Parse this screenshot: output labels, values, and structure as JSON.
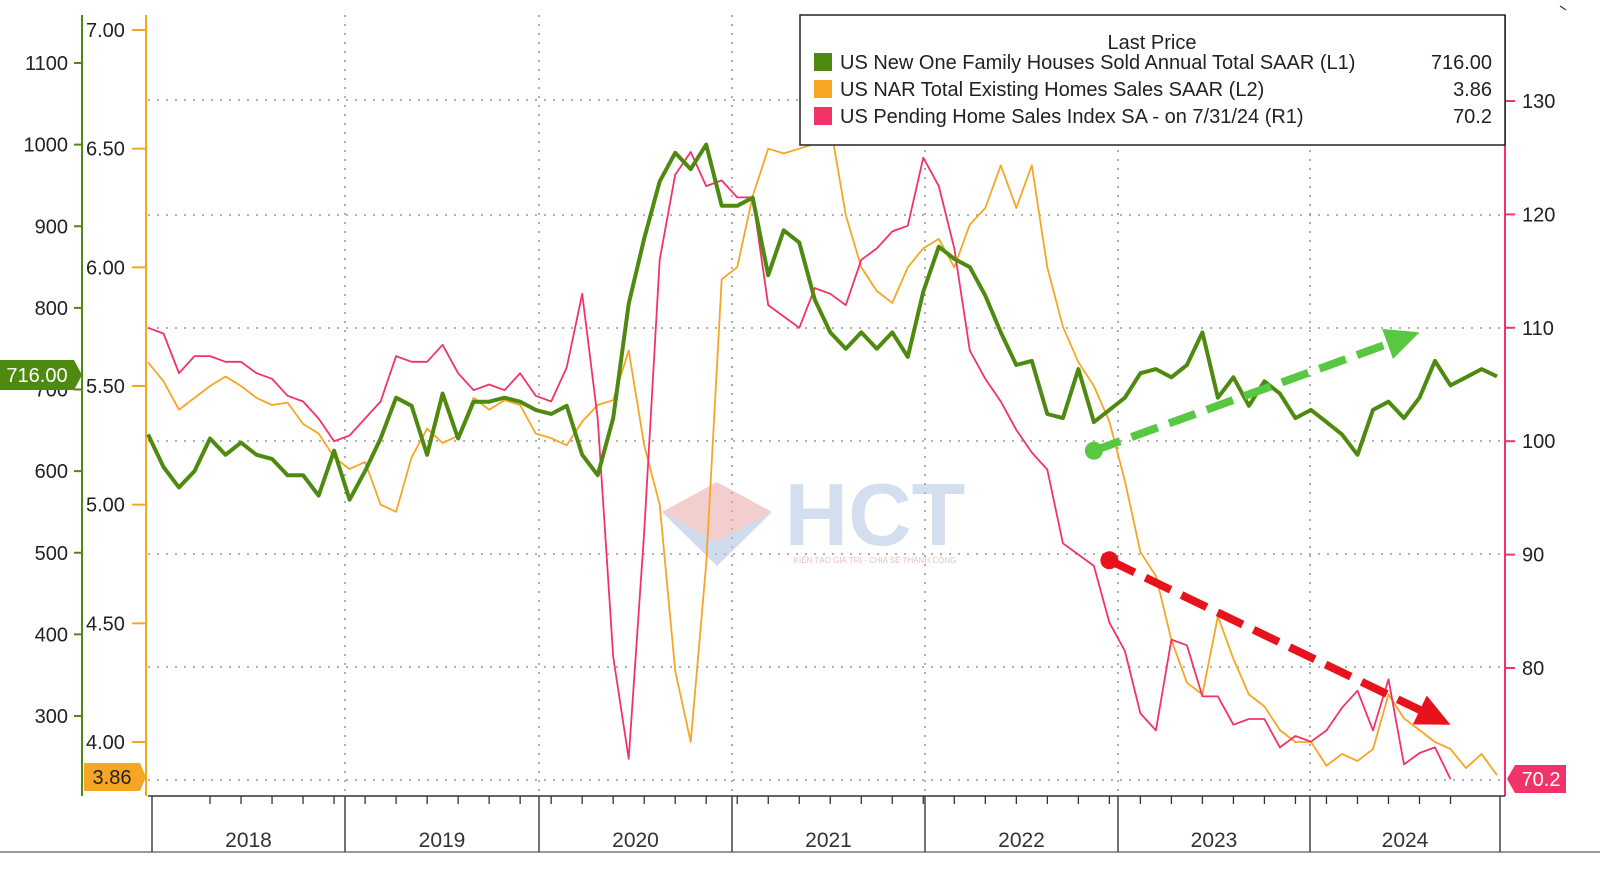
{
  "colors": {
    "green": "#4f8a10",
    "green_dark": "#2f6b06",
    "orange": "#f7a623",
    "pink": "#f2336a",
    "arrow_green": "#58c842",
    "arrow_red": "#e8121c",
    "grid": "#999999",
    "watermark_red": "#e7a5a5",
    "watermark_blue": "#a9bfdf"
  },
  "legend": {
    "title": "Last Price",
    "items": [
      {
        "label": "US New One Family Houses Sold Annual Total SAAR  (L1)",
        "value": "716.00",
        "color": "#4f8a10"
      },
      {
        "label": "US NAR Total Existing Homes Sales SAAR  (L2)",
        "value": "3.86",
        "color": "#f7a623"
      },
      {
        "label": "US Pending Home Sales Index SA -  on 7/31/24  (R1)",
        "value": "70.2",
        "color": "#f2336a"
      }
    ]
  },
  "badges": {
    "l1_last": "716.00",
    "l2_last": "3.86",
    "r1_last": "70.2"
  },
  "watermark": {
    "text": "HCT",
    "tagline": "KIẾN TẠO GIÁ TRỊ - CHIA SẺ THÀNH CÔNG"
  },
  "chart_data": {
    "type": "line",
    "x_range": [
      "2017-09",
      "2024-08"
    ],
    "year_labels": [
      "2018",
      "2019",
      "2020",
      "2021",
      "2022",
      "2023",
      "2024"
    ],
    "axes": {
      "L1": {
        "ticks": [
          1100,
          1000,
          900,
          800,
          700,
          600,
          500,
          400,
          300
        ],
        "range": [
          250,
          1140
        ]
      },
      "L2": {
        "ticks": [
          "7.00",
          "6.50",
          "6.00",
          "5.50",
          "5.00",
          "4.50",
          "4.00"
        ],
        "range": [
          3.82,
          7.05
        ]
      },
      "R1": {
        "ticks": [
          130,
          120,
          110,
          100,
          90,
          80
        ],
        "range": [
          69.3,
          137
        ]
      }
    },
    "grid": true,
    "legend_position": "top-right",
    "series": [
      {
        "name": "US New One Family Houses Sold Annual Total SAAR  (L1)",
        "axis": "L1",
        "color": "#4f8a10",
        "start": "2018-01",
        "values": [
          645,
          605,
          580,
          600,
          640,
          620,
          635,
          620,
          615,
          595,
          595,
          570,
          625,
          565,
          600,
          640,
          690,
          680,
          620,
          695,
          640,
          685,
          685,
          690,
          685,
          675,
          670,
          680,
          620,
          595,
          665,
          805,
          885,
          955,
          990,
          970,
          1000,
          925,
          925,
          935,
          840,
          895,
          880,
          810,
          770,
          750,
          770,
          750,
          770,
          740,
          820,
          875,
          860,
          850,
          815,
          770,
          730,
          735,
          670,
          665,
          725,
          660,
          675,
          690,
          720,
          725,
          715,
          730,
          770,
          690,
          715,
          680,
          710,
          695,
          665,
          675,
          660,
          645,
          620,
          675,
          685,
          665,
          690,
          735,
          705,
          715,
          725,
          716
        ],
        "note": "values are listed monthly from 2017-09; the first value corresponds to 2017-09"
      },
      {
        "name": "US NAR Total Existing Homes Sales SAAR  (L2)",
        "axis": "L2",
        "color": "#f7a623",
        "start": "2017-09",
        "values": [
          5.6,
          5.52,
          5.4,
          5.45,
          5.5,
          5.54,
          5.5,
          5.45,
          5.42,
          5.43,
          5.34,
          5.3,
          5.2,
          5.15,
          5.18,
          5.0,
          4.97,
          5.2,
          5.32,
          5.26,
          5.29,
          5.45,
          5.4,
          5.44,
          5.42,
          5.3,
          5.28,
          5.25,
          5.35,
          5.42,
          5.44,
          5.65,
          5.25,
          5.0,
          4.3,
          4.0,
          4.75,
          5.95,
          6.0,
          6.3,
          6.5,
          6.48,
          6.5,
          6.52,
          6.6,
          6.22,
          6.0,
          5.9,
          5.85,
          6.0,
          6.08,
          6.12,
          6.0,
          6.18,
          6.25,
          6.43,
          6.25,
          6.43,
          6.0,
          5.75,
          5.6,
          5.5,
          5.35,
          5.1,
          4.8,
          4.7,
          4.43,
          4.25,
          4.2,
          4.53,
          4.35,
          4.2,
          4.15,
          4.05,
          4.0,
          4.0,
          3.9,
          3.95,
          3.92,
          3.97,
          4.2,
          4.1,
          4.05,
          4.0,
          3.97,
          3.89,
          3.95,
          3.86
        ]
      },
      {
        "name": "US Pending Home Sales Index SA -  on 7/31/24  (R1)",
        "axis": "R1",
        "color": "#f2336a",
        "start": "2017-09",
        "values": [
          110,
          109.5,
          106,
          107.5,
          107.5,
          107,
          107,
          106,
          105.5,
          104,
          103.5,
          102,
          100,
          100.5,
          102,
          103.5,
          107.5,
          107,
          107,
          108.5,
          106,
          104.5,
          105,
          104.5,
          106,
          104,
          103.5,
          106.5,
          113,
          102,
          81,
          72,
          92,
          116,
          123.5,
          125.5,
          122.5,
          123,
          121.5,
          121.5,
          112,
          111,
          110,
          113.5,
          113,
          112,
          116,
          117,
          118.5,
          119,
          125,
          122.5,
          117,
          108,
          105.5,
          103.5,
          101,
          99,
          97.5,
          91,
          90,
          89,
          84,
          81.5,
          76,
          74.5,
          82.5,
          82,
          77.5,
          77.5,
          75,
          75.5,
          75.5,
          73,
          74,
          73.5,
          74.5,
          76.5,
          78,
          74.5,
          79,
          71.5,
          72.5,
          73,
          70.2
        ]
      }
    ],
    "annotations": [
      {
        "type": "arrow",
        "color": "#58c842",
        "axis": "L1",
        "from": {
          "x": "2022-10",
          "y": 625
        },
        "to": {
          "x": "2024-07",
          "y": 770
        }
      },
      {
        "type": "arrow",
        "color": "#e8121c",
        "axis": "R1",
        "from": {
          "x": "2022-11",
          "y": 89.5
        },
        "to": {
          "x": "2024-09",
          "y": 75
        }
      }
    ]
  }
}
